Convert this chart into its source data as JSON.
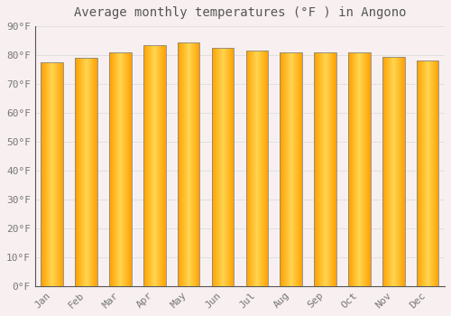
{
  "title": "Average monthly temperatures (°F ) in Angono",
  "months": [
    "Jan",
    "Feb",
    "Mar",
    "Apr",
    "May",
    "Jun",
    "Jul",
    "Aug",
    "Sep",
    "Oct",
    "Nov",
    "Dec"
  ],
  "values": [
    77.5,
    79.0,
    81.0,
    83.5,
    84.5,
    82.5,
    81.5,
    81.0,
    81.0,
    81.0,
    79.5,
    78.0
  ],
  "bar_color_center": "#FFD54F",
  "bar_color_edge": "#FFA000",
  "bar_border_color": "#888888",
  "background_color": "#F8F0F0",
  "grid_color": "#DDDDDD",
  "text_color": "#777777",
  "ylim": [
    0,
    90
  ],
  "yticks": [
    0,
    10,
    20,
    30,
    40,
    50,
    60,
    70,
    80,
    90
  ],
  "title_fontsize": 10,
  "tick_fontsize": 8,
  "bar_width": 0.65
}
